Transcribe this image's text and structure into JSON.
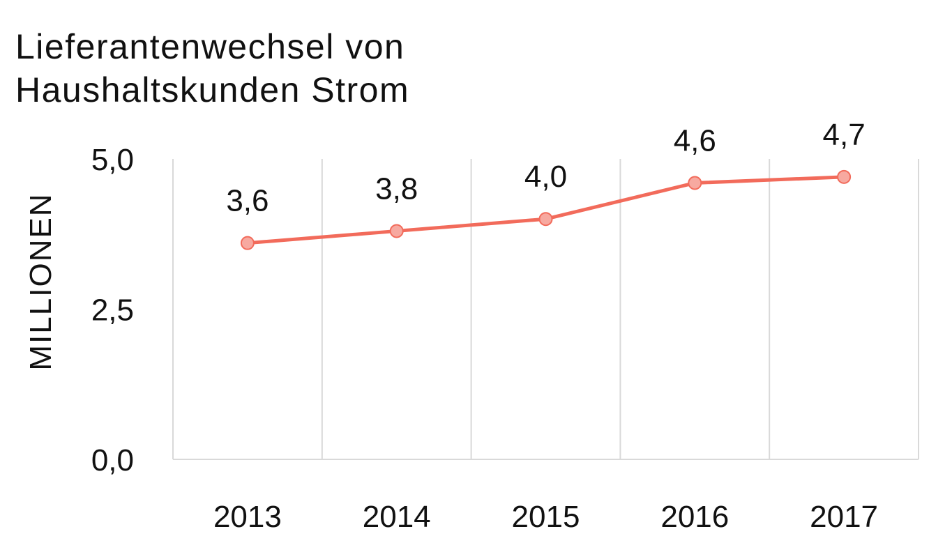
{
  "chart_data": {
    "type": "line",
    "title_lines": [
      "Lieferantenwechsel von",
      "Haushaltskunden Strom"
    ],
    "xlabel": "",
    "ylabel": "MILLIONEN",
    "categories": [
      "2013",
      "2014",
      "2015",
      "2016",
      "2017"
    ],
    "series": [
      {
        "values": [
          3.6,
          3.8,
          4.0,
          4.6,
          4.7
        ],
        "labels": [
          "3,6",
          "3,8",
          "4,0",
          "4,6",
          "4,7"
        ],
        "color": "#f26b5b",
        "marker_color": "#f7a9a0"
      }
    ],
    "ylim": [
      0,
      5
    ],
    "yticks": [
      {
        "value": 0,
        "label": "0,0"
      },
      {
        "value": 2.5,
        "label": "2,5"
      },
      {
        "value": 5,
        "label": "5,0"
      }
    ],
    "grid": "vertical",
    "legend": "none"
  }
}
